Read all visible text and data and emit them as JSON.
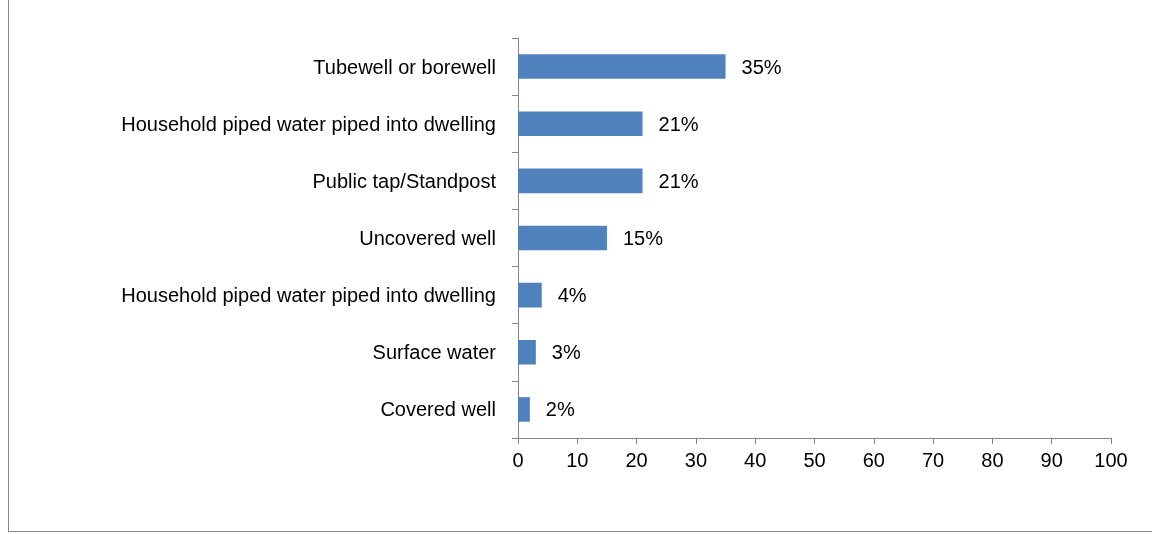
{
  "chart_data": {
    "type": "bar",
    "orientation": "horizontal",
    "categories": [
      "Tubewell or borewell",
      "Household piped water piped into dwelling",
      "Public tap/Standpost",
      "Uncovered well",
      "Household piped water piped into dwelling",
      "Surface water",
      "Covered well"
    ],
    "values": [
      35,
      21,
      21,
      15,
      4,
      3,
      2
    ],
    "value_labels": [
      "35%",
      "21%",
      "21%",
      "15%",
      "4%",
      "3%",
      "2%"
    ],
    "color": "#4f81bd",
    "xlim": [
      0,
      100
    ],
    "xticks": [
      0,
      10,
      20,
      30,
      40,
      50,
      60,
      70,
      80,
      90,
      100
    ],
    "grid": false
  }
}
